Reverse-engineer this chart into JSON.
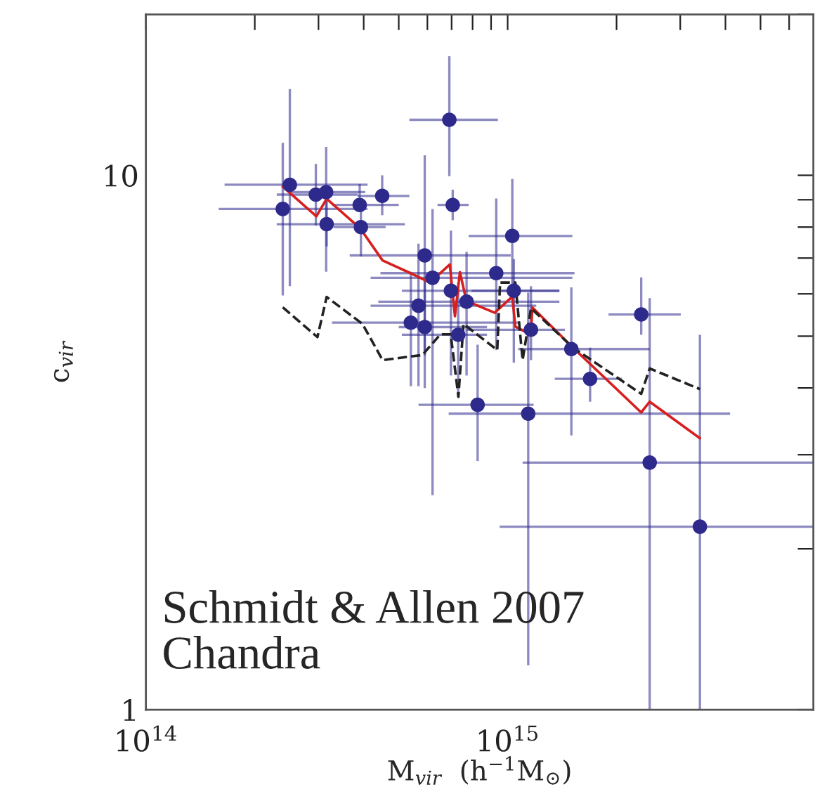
{
  "chart_data": {
    "type": "scatter",
    "xlabel": "M$_{vir}$  (h$^{−1}$M$_{⊙}$)",
    "ylabel": "c$_{vir}$",
    "annotations": [
      "Schmidt & Allen 2007\nChandra"
    ],
    "log": "xy",
    "grid": false,
    "legend": false,
    "marker": "circle",
    "xlim": [
      100000000000000.0,
      7000000000000000.0
    ],
    "ylim": [
      1,
      20
    ],
    "xticks": [
      {
        "value": 100000000000000.0,
        "label": "10$^{14}$"
      },
      {
        "value": 200000000000000.0,
        "label": null
      },
      {
        "value": 300000000000000.0,
        "label": null
      },
      {
        "value": 400000000000000.0,
        "label": null
      },
      {
        "value": 500000000000000.0,
        "label": null
      },
      {
        "value": 600000000000000.0,
        "label": null
      },
      {
        "value": 700000000000000.0,
        "label": null
      },
      {
        "value": 800000000000000.0,
        "label": null
      },
      {
        "value": 900000000000000.0,
        "label": null
      },
      {
        "value": 1000000000000000.0,
        "label": "10$^{15}$"
      },
      {
        "value": 2000000000000000.0,
        "label": null
      },
      {
        "value": 3000000000000000.0,
        "label": null
      },
      {
        "value": 4000000000000000.0,
        "label": null
      },
      {
        "value": 5000000000000000.0,
        "label": null
      },
      {
        "value": 6000000000000000.0,
        "label": null
      }
    ],
    "yticks": [
      1,
      {
        "value": 2,
        "label": null
      },
      {
        "value": 3,
        "label": null
      },
      {
        "value": 4,
        "label": null
      },
      {
        "value": 5,
        "label": null
      },
      {
        "value": 6,
        "label": null
      },
      {
        "value": 7,
        "label": null
      },
      {
        "value": 8,
        "label": null
      },
      {
        "value": 9,
        "label": null
      },
      10,
      {
        "value": 20,
        "label": null
      }
    ],
    "series": [
      {
        "color": "#2e2a8c",
        "x": [
          239000000000000.0,
          250000000000000.0,
          295000000000000.0,
          315000000000000.0,
          316000000000000.0,
          390000000000000.0,
          393000000000000.0,
          450000000000000.0,
          690000000000000.0,
          705000000000000.0,
          590000000000000.0,
          620000000000000.0,
          567000000000000.0,
          540000000000000.0,
          590000000000000.0,
          697000000000000.0,
          730000000000000.0,
          770000000000000.0,
          930000000000000.0,
          1030000000000000.0,
          1040000000000000.0,
          1160000000000000.0,
          826000000000000.0,
          1140000000000000.0,
          1500000000000000.0,
          1690000000000000.0,
          2340000000000000.0,
          2470000000000000.0,
          3400000000000000.0
        ],
        "values": [
          8.65,
          9.6,
          9.2,
          9.3,
          8.1,
          8.8,
          8.0,
          9.15,
          12.7,
          8.8,
          7.08,
          6.43,
          5.7,
          5.3,
          5.2,
          6.08,
          5.03,
          5.8,
          6.56,
          7.7,
          6.08,
          5.14,
          3.72,
          3.58,
          4.73,
          4.16,
          5.49,
          2.9,
          2.2
        ],
        "xerrors": [
          [
            159000000000000.0,
            410000000000000.0
          ],
          [
            165000000000000.0,
            410000000000000.0
          ],
          [
            230000000000000.0,
            385000000000000.0
          ],
          [
            250000000000000.0,
            404000000000000.0
          ],
          [
            230000000000000.0,
            520000000000000.0
          ],
          [
            327000000000000.0,
            500000000000000.0
          ],
          [
            330000000000000.0,
            460000000000000.0
          ],
          [
            385000000000000.0,
            535000000000000.0
          ],
          [
            535000000000000.0,
            940000000000000.0
          ],
          [
            640000000000000.0,
            780000000000000.0
          ],
          [
            366000000000000.0,
            1020000000000000.0
          ],
          [
            418000000000000.0,
            1510000000000000.0
          ],
          [
            418000000000000.0,
            1200000000000000.0
          ],
          [
            327000000000000.0,
            1070000000000000.0
          ],
          [
            500000000000000.0,
            877000000000000.0
          ],
          [
            510000000000000.0,
            1390000000000000.0
          ],
          [
            510000000000000.0,
            877000000000000.0
          ],
          [
            439000000000000.0,
            1390000000000000.0
          ],
          [
            445000000000000.0,
            1530000000000000.0
          ],
          [
            780000000000000.0,
            1510000000000000.0
          ],
          [
            795000000000000.0,
            1390000000000000.0
          ],
          [
            770000000000000.0,
            1440000000000000.0
          ],
          [
            567000000000000.0,
            1180000000000000.0
          ],
          [
            687000000000000.0,
            4120000000000000.0
          ],
          [
            1070000000000000.0,
            2470000000000000.0
          ],
          [
            1350000000000000.0,
            2070000000000000.0
          ],
          [
            1900000000000000.0,
            3010000000000000.0
          ],
          [
            1100000000000000.0,
            7000000000000000.0
          ],
          [
            950000000000000.0,
            7000000000000000.0
          ]
        ],
        "errors": [
          [
            5.96,
            11.5
          ],
          [
            6.2,
            14.5
          ],
          [
            8.05,
            10.5
          ],
          [
            6.6,
            11.3
          ],
          [
            7.36,
            9.0
          ],
          [
            8.8,
            9.63
          ],
          [
            7.05,
            9.0
          ],
          [
            8.42,
            10
          ],
          [
            9.96,
            16.7
          ],
          [
            8.24,
            9.4
          ],
          [
            4.0,
            10.9
          ],
          [
            2.52,
            8.65
          ],
          [
            4.03,
            7.45
          ],
          [
            4.03,
            6.6
          ],
          [
            4.6,
            6.37
          ],
          [
            4.22,
            7.88
          ],
          [
            3.85,
            6.29
          ],
          [
            4.22,
            7.19
          ],
          [
            4.71,
            9.05
          ],
          [
            6.03,
            9.84
          ],
          [
            4.46,
            6.97
          ],
          [
            4.51,
            6.2
          ],
          [
            2.92,
            4.82
          ],
          [
            1.21,
            6.03
          ],
          [
            3.26,
            6.17
          ],
          [
            3.77,
            4.76
          ],
          [
            5.03,
            6.44
          ],
          [
            1,
            5.89
          ],
          [
            1,
            5.03
          ]
        ]
      },
      {
        "type": "line",
        "color": "#d62020",
        "line_style": "solid",
        "marker": "none",
        "x": [
          239000000000000.0,
          296000000000000.0,
          316000000000000.0,
          391000000000000.0,
          451000000000000.0,
          552000000000000.0,
          610000000000000.0,
          692000000000000.0,
          715000000000000.0,
          738000000000000.0,
          769000000000000.0,
          921000000000000.0,
          1030000000000000.0,
          1050000000000000.0,
          1160000000000000.0,
          1170000000000000.0,
          1510000000000000.0,
          2340000000000000.0,
          2470000000000000.0,
          3400000000000000.0
        ],
        "values": [
          9.52,
          8.38,
          9.04,
          7.96,
          6.93,
          6.51,
          6.3,
          6.81,
          5.45,
          6.59,
          5.82,
          5.53,
          5.93,
          5.21,
          5.03,
          5.66,
          4.77,
          3.6,
          3.77,
          3.22
        ]
      },
      {
        "type": "line",
        "color": "#222222",
        "line_style": "dashed",
        "marker": "none",
        "x": [
          239000000000000.0,
          298000000000000.0,
          316000000000000.0,
          397000000000000.0,
          451000000000000.0,
          581000000000000.0,
          652000000000000.0,
          696000000000000.0,
          731000000000000.0,
          755000000000000.0,
          936000000000000.0,
          953000000000000.0,
          1050000000000000.0,
          1100000000000000.0,
          1160000000000000.0,
          1510000000000000.0,
          2340000000000000.0,
          2470000000000000.0,
          3400000000000000.0
        ],
        "values": [
          5.66,
          4.98,
          5.92,
          5.27,
          4.51,
          4.61,
          5.04,
          5.04,
          3.85,
          5.27,
          4.71,
          6.3,
          6.3,
          4.51,
          5.64,
          4.77,
          3.9,
          4.35,
          3.98
        ]
      }
    ]
  }
}
